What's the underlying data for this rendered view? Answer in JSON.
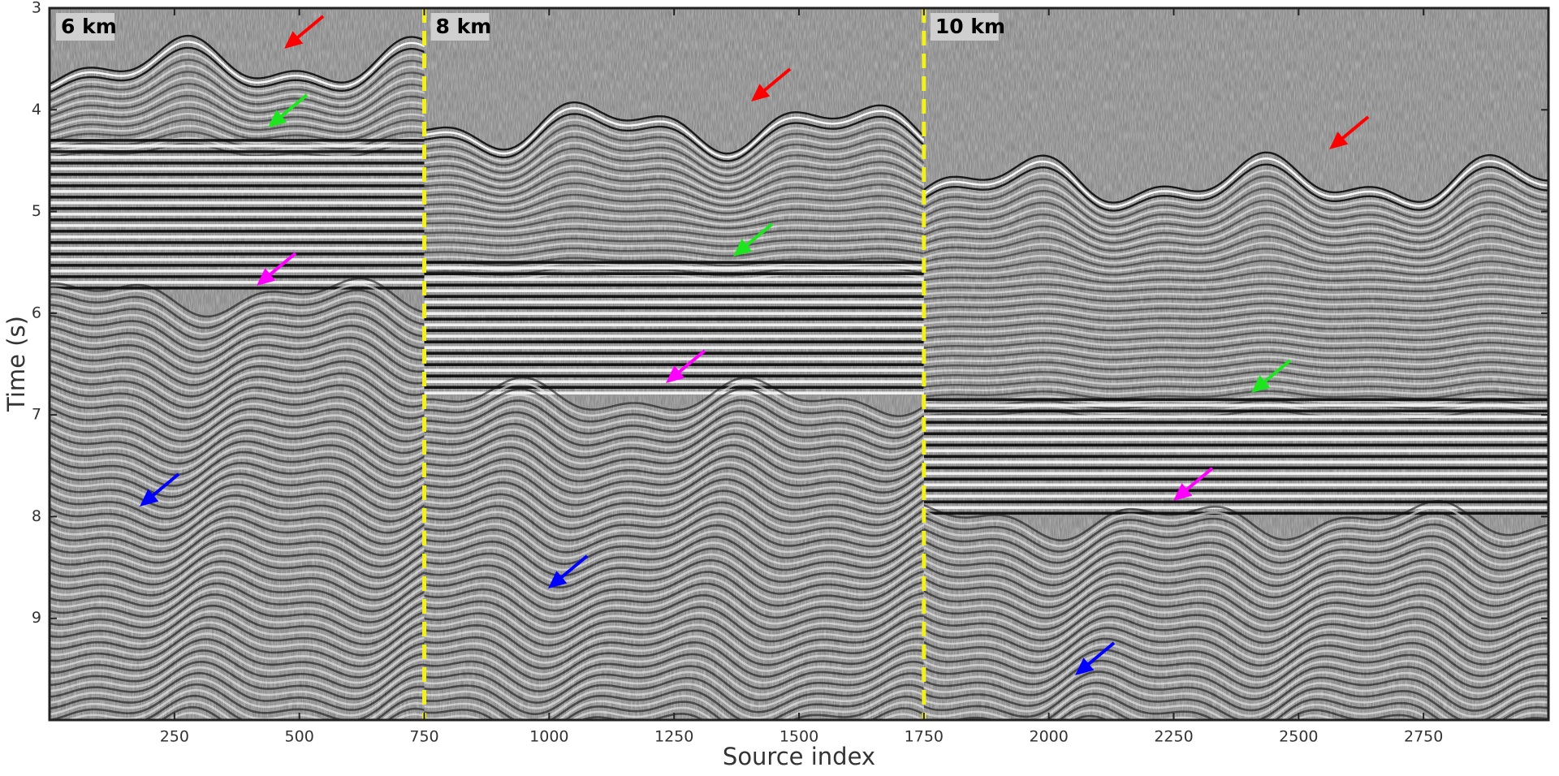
{
  "chart_data": {
    "type": "image",
    "xlabel": "Source index",
    "ylabel": "Time (s)",
    "xlim": [
      0,
      3000
    ],
    "ylim": [
      3,
      10
    ],
    "y_inverted": true,
    "xticks": [
      250,
      500,
      750,
      1000,
      1250,
      1500,
      1750,
      2000,
      2250,
      2500,
      2750
    ],
    "yticks": [
      3,
      4,
      5,
      6,
      7,
      8,
      9
    ],
    "dividers": [
      750,
      1750
    ],
    "divider_color": "#f2f21a",
    "panel_labels": [
      "6 km",
      "8 km",
      "10 km"
    ]
  }
}
